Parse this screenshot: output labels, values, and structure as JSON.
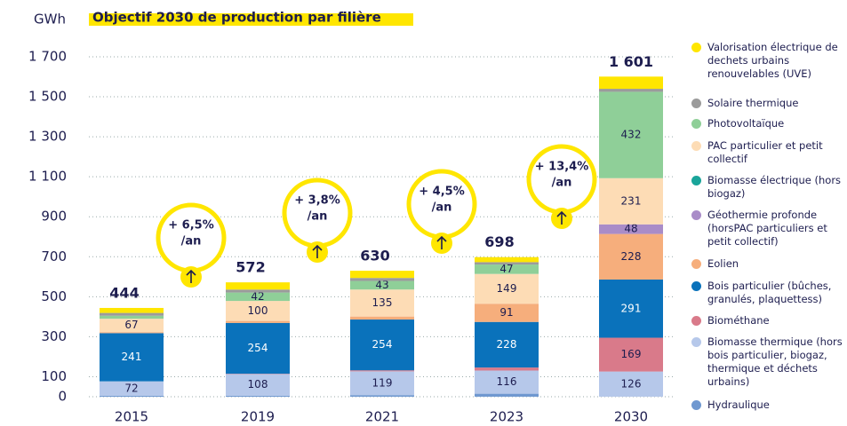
{
  "chart_data": {
    "type": "stacked_bar",
    "title": "Objectif 2030 de production par filière",
    "y_label": "GWh",
    "categories": [
      "2015",
      "2019",
      "2021",
      "2023",
      "2030"
    ],
    "ylim": [
      0,
      1700
    ],
    "yticks": [
      0,
      100,
      300,
      500,
      700,
      900,
      {
        "value": 1100,
        "label": "1 100"
      },
      {
        "value": 1300,
        "label": "1 300"
      },
      {
        "value": 1500,
        "label": "1 500"
      },
      {
        "value": 1700,
        "label": "1 700"
      }
    ],
    "grid": true,
    "total_labels": [
      "444",
      "572",
      "630",
      "698",
      "1 601"
    ],
    "annotations": [
      [
        "+ 6,5%",
        "/an"
      ],
      [
        "+ 3,8%",
        "/an"
      ],
      [
        "+ 4,5%",
        "/an"
      ],
      [
        "+ 13,4%",
        "/an"
      ]
    ],
    "series": [
      {
        "name": "Hydraulique",
        "color": "#6f98d0",
        "values": [
          5,
          5,
          8,
          15,
          0
        ],
        "value_labels": [
          null,
          null,
          null,
          null,
          null
        ]
      },
      {
        "name": "Biomasse thermique (hors bois particulier, biogaz, thermique et déchets urbains)",
        "color": "#b6c8ea",
        "values": [
          72,
          108,
          119,
          116,
          126
        ],
        "value_labels": [
          "72",
          "108",
          "119",
          "116",
          "126"
        ]
      },
      {
        "name": "Biométhane",
        "color": "#d97a8a",
        "values": [
          0,
          2,
          5,
          15,
          169
        ],
        "value_labels": [
          null,
          null,
          null,
          null,
          "169"
        ]
      },
      {
        "name": "Bois particulier (bûches, granulés, plaquettess)",
        "color": "#0a72bb",
        "values": [
          241,
          254,
          254,
          228,
          291
        ],
        "value_labels": [
          "241",
          "254",
          "254",
          "228",
          "291"
        ]
      },
      {
        "name": "Eolien",
        "color": "#f6ae7c",
        "values": [
          5,
          10,
          15,
          91,
          228
        ],
        "value_labels": [
          null,
          null,
          null,
          "91",
          "228"
        ]
      },
      {
        "name": "Géothermie profonde (horsPAC particuliers et petit collectif)",
        "color": "#a98cc8",
        "values": [
          0,
          0,
          0,
          0,
          48
        ],
        "value_labels": [
          null,
          null,
          null,
          null,
          "48"
        ]
      },
      {
        "name": "Biomasse électrique (hors biogaz)",
        "color": "#1aa59a",
        "values": [
          0,
          0,
          0,
          0,
          0
        ],
        "value_labels": [
          null,
          null,
          null,
          null,
          null
        ]
      },
      {
        "name": "PAC particulier et petit collectif",
        "color": "#fddcb5",
        "values": [
          67,
          100,
          135,
          149,
          231
        ],
        "value_labels": [
          "67",
          "100",
          "135",
          "149",
          "231"
        ]
      },
      {
        "name": "Photovoltaïque",
        "color": "#8fcf98",
        "values": [
          15,
          42,
          43,
          47,
          432
        ],
        "value_labels": [
          null,
          "42",
          "43",
          "47",
          "432"
        ]
      },
      {
        "name": "Solaire thermique",
        "color": "#9b9b9b",
        "values": [
          14,
          15,
          15,
          12,
          15
        ],
        "value_labels": [
          null,
          null,
          null,
          null,
          null
        ]
      },
      {
        "name": "Valorisation électrique de dechets urbains renouvelables (UVE)",
        "color": "#ffe600",
        "values": [
          25,
          36,
          36,
          25,
          61
        ],
        "value_labels": [
          null,
          null,
          null,
          null,
          null
        ]
      }
    ]
  }
}
